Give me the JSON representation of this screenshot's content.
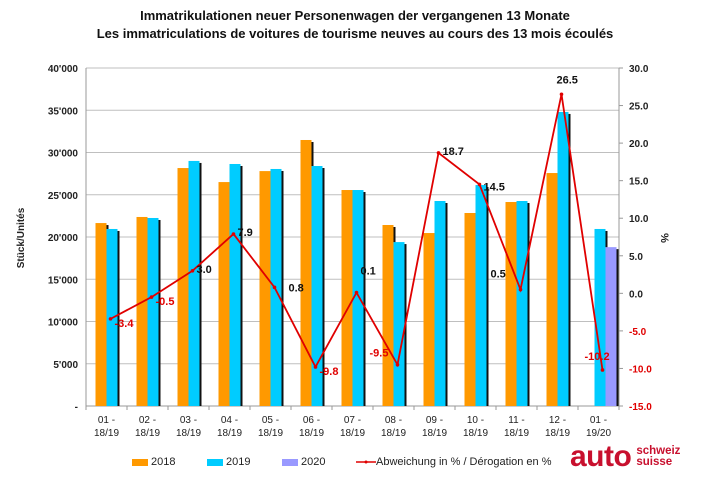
{
  "chart_data": {
    "type": "bar",
    "title": "Immatrikulationen neuer Personenwagen der vergangenen 13 Monate",
    "subtitle": "Les immatriculations de voitures de tourisme neuves au cours des 13 mois écoulés",
    "ylabel": "Stück/Unités",
    "y2label": "%",
    "ylim": [
      0,
      40000
    ],
    "y2lim": [
      -15,
      30
    ],
    "yticks": [
      "-",
      "5'000",
      "10'000",
      "15'000",
      "20'000",
      "25'000",
      "30'000",
      "35'000",
      "40'000"
    ],
    "y2ticks": [
      "-15.0",
      "-10.0",
      "-5.0",
      "0.0",
      "5.0",
      "10.0",
      "15.0",
      "20.0",
      "25.0",
      "30.0"
    ],
    "categories": [
      [
        "01 -",
        "18/19"
      ],
      [
        "02 -",
        "18/19"
      ],
      [
        "03 -",
        "18/19"
      ],
      [
        "04 -",
        "18/19"
      ],
      [
        "05 -",
        "18/19"
      ],
      [
        "06 -",
        "18/19"
      ],
      [
        "07 -",
        "18/19"
      ],
      [
        "08 -",
        "18/19"
      ],
      [
        "09 -",
        "18/19"
      ],
      [
        "10 -",
        "18/19"
      ],
      [
        "11 -",
        "18/19"
      ],
      [
        "12 -",
        "18/19"
      ],
      [
        "01 -",
        "19/20"
      ]
    ],
    "grid": true,
    "legend_position": "bottom",
    "series": [
      {
        "name": "2018",
        "color": "#ff9900",
        "values": [
          21650,
          22370,
          28160,
          26500,
          27800,
          31480,
          25560,
          21420,
          20470,
          22840,
          24140,
          27570,
          null
        ]
      },
      {
        "name": "2019",
        "color": "#00ccff",
        "values": [
          20950,
          22250,
          29000,
          28640,
          28050,
          28400,
          25560,
          19400,
          24260,
          26150,
          24260,
          34800,
          20950
        ]
      },
      {
        "name": "2020",
        "color": "#9999ff",
        "values": [
          null,
          null,
          null,
          null,
          null,
          null,
          null,
          null,
          null,
          null,
          null,
          null,
          18800
        ]
      },
      {
        "name": "Abweichung in % / Dérogation en %",
        "type": "line",
        "axis": "right",
        "color": "#e00000",
        "values": [
          -3.4,
          -0.5,
          3.0,
          7.9,
          0.8,
          -9.8,
          0.1,
          -9.5,
          18.7,
          14.5,
          0.5,
          26.5,
          -10.2
        ],
        "labels": [
          "-3.4",
          "-0.5",
          "3.0",
          "7.9",
          "0.8",
          "-9.8",
          "0.1",
          "-9.5",
          "18.7",
          "14.5",
          "0.5",
          "26.5",
          "-10.2"
        ]
      }
    ]
  },
  "logo": {
    "main": "auto",
    "line1": "schweiz",
    "line2": "suisse"
  }
}
